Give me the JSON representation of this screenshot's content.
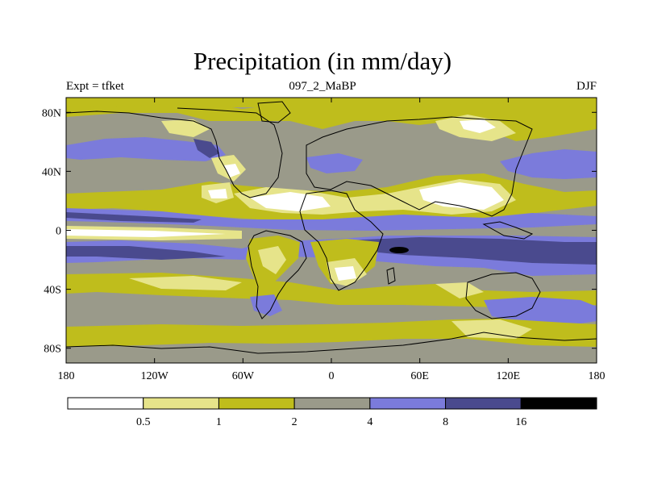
{
  "title": "Precipitation (in mm/day)",
  "subtitle_left": "Expt = tfket",
  "subtitle_center": "097_2_MaBP",
  "subtitle_right": "DJF",
  "map": {
    "lon_range": [
      -180,
      180
    ],
    "lat_range": [
      -90,
      90
    ],
    "x_ticks": [
      {
        "value": -180,
        "label": "180"
      },
      {
        "value": -120,
        "label": "120W"
      },
      {
        "value": -60,
        "label": "60W"
      },
      {
        "value": 0,
        "label": "0"
      },
      {
        "value": 60,
        "label": "60E"
      },
      {
        "value": 120,
        "label": "120E"
      },
      {
        "value": 180,
        "label": "180"
      }
    ],
    "y_ticks": [
      {
        "value": 80,
        "label": "80N"
      },
      {
        "value": 40,
        "label": "40N"
      },
      {
        "value": 0,
        "label": "0"
      },
      {
        "value": -40,
        "label": "40S"
      },
      {
        "value": -80,
        "label": "80S"
      }
    ]
  },
  "colorbar": {
    "levels": [
      "0.5",
      "1",
      "2",
      "4",
      "8",
      "16"
    ],
    "colors": [
      "#ffffff",
      "#e6e48a",
      "#bfbd1c",
      "#9a9a8a",
      "#7b7bdb",
      "#4a4a8e",
      "#000000"
    ]
  }
}
